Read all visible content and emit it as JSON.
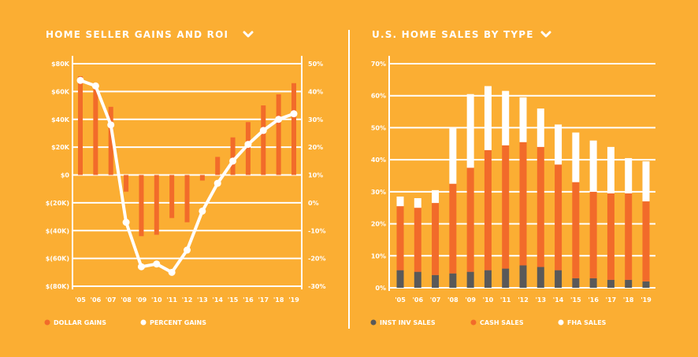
{
  "colors": {
    "background": "#FBAE33",
    "gridline": "#FFFFFF",
    "dollar_gains": "#F26B2A",
    "percent_gains": "#FFFFFF",
    "inst_inv": "#595959",
    "cash": "#F26B2A",
    "fha": "#FFFFFF",
    "text": "#FFFFFF"
  },
  "chart_data": [
    {
      "type": "bar+line",
      "title": "HOME SELLER GAINS AND ROI",
      "title_icon": "chevron-down-icon",
      "categories": [
        "'05",
        "'06",
        "'07",
        "'08",
        "'09",
        "'10",
        "'11",
        "'12",
        "'13",
        "'14",
        "'15",
        "'16",
        "'17",
        "'18",
        "'19"
      ],
      "left_axis": {
        "ticks": [
          80000,
          60000,
          40000,
          20000,
          0,
          -20000,
          -40000,
          -60000,
          -80000
        ],
        "tick_labels": [
          "$80K",
          "$60K",
          "$40K",
          "$20K",
          "$0",
          "$(20K)",
          "$(40K)",
          "$(60K)",
          "$(80K)"
        ],
        "ylim": [
          -80000,
          80000
        ]
      },
      "right_axis": {
        "ticks": [
          50,
          40,
          30,
          20,
          10,
          0,
          -10,
          -20,
          -30
        ],
        "tick_labels": [
          "50%",
          "40%",
          "30%",
          "20%",
          "10%",
          "0%",
          "-10%",
          "-20%",
          "-30%"
        ],
        "ylim": [
          -30,
          50
        ]
      },
      "series": [
        {
          "name": "DOLLAR GAINS",
          "type": "bar",
          "axis": "left",
          "values": [
            71000,
            64000,
            49000,
            -12000,
            -44000,
            -43000,
            -31000,
            -34000,
            -4000,
            13000,
            27000,
            38000,
            50000,
            58000,
            66000
          ]
        },
        {
          "name": "PERCENT GAINS",
          "type": "line",
          "axis": "right",
          "values": [
            44,
            42,
            28,
            -7,
            -23,
            -22,
            -25,
            -17,
            -3,
            7,
            15,
            21,
            26,
            30,
            32
          ]
        }
      ],
      "grid": true,
      "legend": "bottom"
    },
    {
      "type": "stacked-bar",
      "title": "U.S. HOME SALES BY TYPE",
      "title_icon": "chevron-down-icon",
      "categories": [
        "'05",
        "'06",
        "'07",
        "'08",
        "'09",
        "'10",
        "'11",
        "'12",
        "'13",
        "'14",
        "'15",
        "'16",
        "'17",
        "'18",
        "'19"
      ],
      "y_axis": {
        "ticks": [
          70,
          60,
          50,
          40,
          30,
          20,
          10,
          0
        ],
        "tick_labels": [
          "70%",
          "60%",
          "50%",
          "40%",
          "30%",
          "20%",
          "10%",
          "0%"
        ],
        "ylim": [
          0,
          70
        ]
      },
      "series": [
        {
          "name": "INST INV SALES",
          "values": [
            5.5,
            5.0,
            4.0,
            4.5,
            5.0,
            5.5,
            6.0,
            7.0,
            6.5,
            5.5,
            3.0,
            3.0,
            2.5,
            2.5,
            2.0
          ]
        },
        {
          "name": "CASH SALES",
          "values": [
            20.0,
            20.0,
            22.5,
            28.0,
            32.5,
            37.5,
            38.5,
            38.5,
            37.5,
            33.0,
            30.0,
            27.0,
            27.0,
            27.0,
            25.0
          ]
        },
        {
          "name": "FHA SALES",
          "values": [
            3.0,
            3.0,
            4.0,
            17.5,
            23.0,
            20.0,
            17.0,
            14.0,
            12.0,
            12.5,
            15.5,
            16.0,
            14.5,
            11.0,
            12.5
          ]
        }
      ],
      "grid": true,
      "legend": "bottom"
    }
  ]
}
